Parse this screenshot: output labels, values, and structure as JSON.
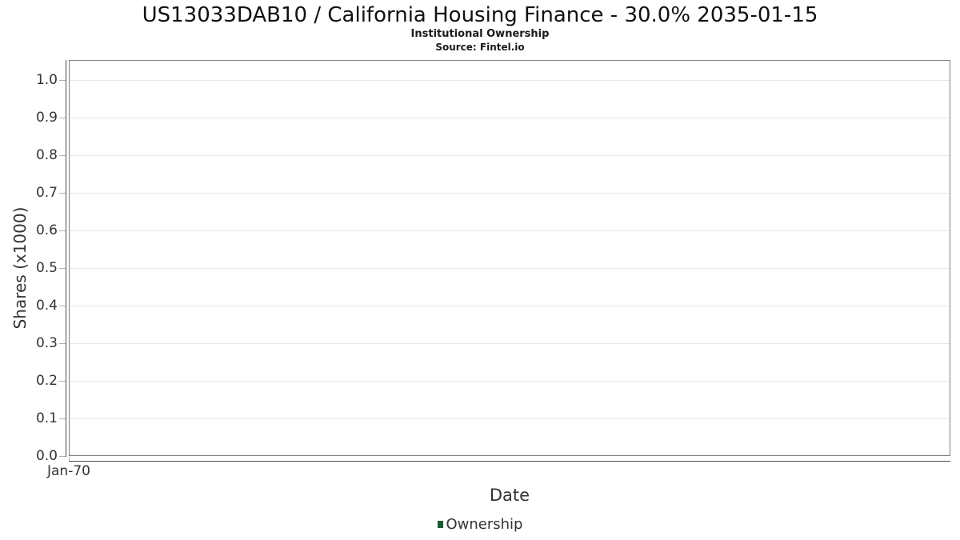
{
  "chart_data": {
    "type": "line",
    "title": "US13033DAB10 / California Housing Finance - 30.0% 2035-01-15",
    "subtitle": "Institutional Ownership",
    "source_note": "Source: Fintel.io",
    "xlabel": "Date",
    "ylabel": "Shares (x1000)",
    "x_tick_labels": [
      "Jan-70"
    ],
    "y_tick_labels": [
      "0.0",
      "0.1",
      "0.2",
      "0.3",
      "0.4",
      "0.5",
      "0.6",
      "0.7",
      "0.8",
      "0.9",
      "1.0"
    ],
    "ylim": [
      0.0,
      1.0
    ],
    "y_tick_step": 0.1,
    "grid": true,
    "legend_position": "bottom-center",
    "series": [
      {
        "name": "Ownership",
        "color": "#1e5a32",
        "x": [],
        "values": []
      }
    ],
    "colors": {
      "background": "#ffffff",
      "grid": "#e6e6e6",
      "plot_border": "#7f7f7f",
      "axis_line": "#4c4c4c",
      "tick": "#b0b0b0",
      "text": "#333333",
      "title_text": "#111111",
      "legend_marker": "#1e5a32"
    }
  }
}
